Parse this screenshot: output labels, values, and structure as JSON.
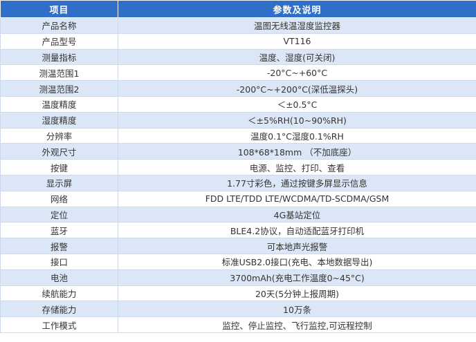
{
  "table": {
    "headers": [
      "项目",
      "参数及说明"
    ],
    "rows": [
      [
        "产品名称",
        "温图无线温湿度监控器"
      ],
      [
        "产品型号",
        "VT116"
      ],
      [
        "测量指标",
        "温度、湿度(可关闭)"
      ],
      [
        "测温范围1",
        "-20°C~+60°C"
      ],
      [
        "测温范围2",
        "-200°C~+200°C(深低温探头)"
      ],
      [
        "温度精度",
        "＜±0.5°C"
      ],
      [
        "湿度精度",
        "＜±5%RH(10~90%RH)"
      ],
      [
        "分辨率",
        "温度0.1°C湿度0.1%RH"
      ],
      [
        "外观尺寸",
        "108*68*18mm （不加底座）"
      ],
      [
        "按键",
        "电源、监控、打印、查看"
      ],
      [
        "显示屏",
        "1.77寸彩色，通过按键多屏显示信息"
      ],
      [
        "网络",
        "FDD LTE/TDD LTE/WCDMA/TD-SCDMA/GSM"
      ],
      [
        "定位",
        "4G基站定位"
      ],
      [
        "蓝牙",
        "BLE4.2协议，自动适配蓝牙打印机"
      ],
      [
        "报警",
        "可本地声光报警"
      ],
      [
        "接口",
        "标准USB2.0接口(充电、本地数据导出)"
      ],
      [
        "电池",
        "3700mAh(充电工作温度0~45°C)"
      ],
      [
        "续航能力",
        "20天(5分钟上报周期)"
      ],
      [
        "存储能力",
        "10万条"
      ],
      [
        "工作模式",
        "监控、停止监控、飞行监控,可远程控制"
      ]
    ]
  }
}
